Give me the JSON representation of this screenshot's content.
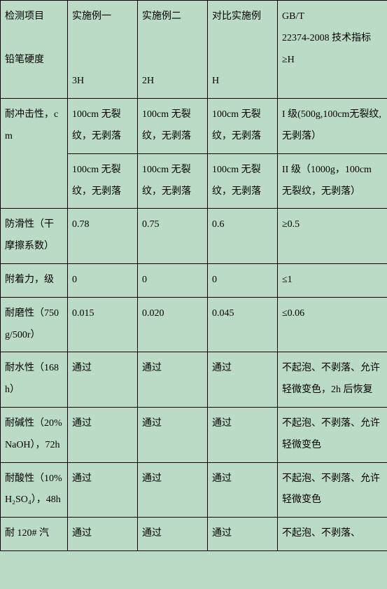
{
  "header": {
    "c1a": "检测项目",
    "c1b": "铅笔硬度",
    "c2a": "实施例一",
    "c2b": "3H",
    "c3a": "实施例二",
    "c3b": "2H",
    "c4a": "对比实施例",
    "c4b": "H",
    "c5a": "GB/T",
    "c5b": "22374-2008 技术指标",
    "c5c": "≥H"
  },
  "impact": {
    "label": "耐冲击性，cm",
    "r1c2": "100cm 无裂纹，无剥落",
    "r1c3": "100cm 无裂纹，无剥落",
    "r1c4": "100cm 无裂纹，无剥落",
    "r1c5": "I 级(500g,100cm无裂纹,无剥落）",
    "r2c2": "100cm 无裂纹，无剥落",
    "r2c3": "100cm 无裂纹，无剥落",
    "r2c4": "100cm 无裂纹，无剥落",
    "r2c5": "II 级（1000g，100cm 无裂纹，无剥落）"
  },
  "rows": [
    {
      "c1": "防滑性（干摩擦系数）",
      "c2": "0.78",
      "c3": "0.75",
      "c4": "0.6",
      "c5": "≥0.5"
    },
    {
      "c1": "附着力，级",
      "c2": "0",
      "c3": "0",
      "c4": "0",
      "c5": "≤1"
    },
    {
      "c1": "耐磨性（750g/500r）",
      "c2": "0.015",
      "c3": "0.020",
      "c4": "0.045",
      "c5": "≤0.06",
      "j": true
    },
    {
      "c1": "耐水性（168h）",
      "c2": "通过",
      "c3": "通过",
      "c4": "通过",
      "c5": "不起泡、不剥落、允许轻微变色，2h 后恢复",
      "j": true
    },
    {
      "c1": "耐碱性（20%NaOH），72h",
      "c2": "通过",
      "c3": "通过",
      "c4": "通过",
      "c5": "不起泡、不剥落、允许轻微变色",
      "j": true
    },
    {
      "c1": "耐酸性（10%H₂SO₄），48h",
      "c2": "通过",
      "c3": "通过",
      "c4": "通过",
      "c5": "不起泡、不剥落、允许轻微变色",
      "j": true
    },
    {
      "c1": "耐 120# 汽",
      "c2": "通过",
      "c3": "通过",
      "c4": "通过",
      "c5": "不起泡、不剥落、"
    }
  ]
}
